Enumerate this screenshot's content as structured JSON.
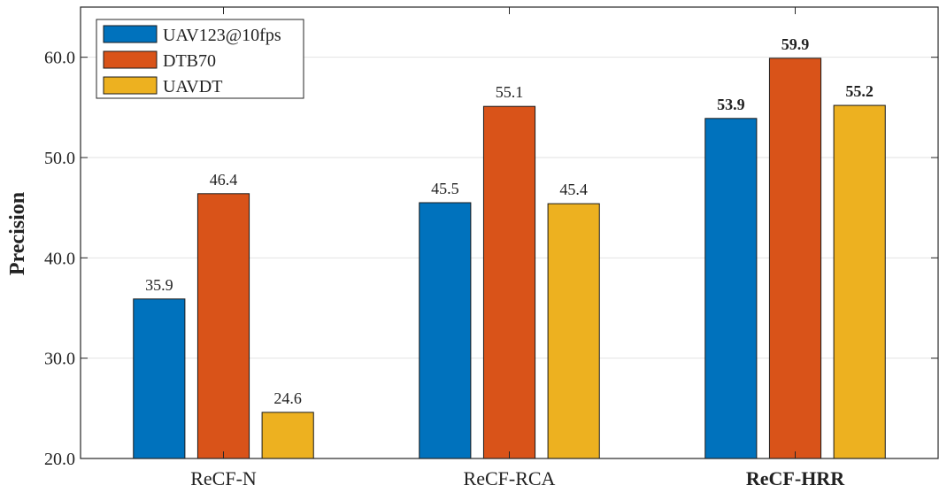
{
  "chart_data": {
    "type": "bar",
    "categories": [
      "ReCF-N",
      "ReCF-RCA",
      "ReCF-HRR"
    ],
    "bold_category": "ReCF-HRR",
    "series": [
      {
        "name": "UAV123@10fps",
        "color": "#0072BD",
        "values": [
          35.9,
          45.5,
          53.9
        ]
      },
      {
        "name": "DTB70",
        "color": "#D95319",
        "values": [
          46.4,
          55.1,
          59.9
        ]
      },
      {
        "name": "UAVDT",
        "color": "#EDB120",
        "values": [
          24.6,
          45.4,
          55.2
        ]
      }
    ],
    "title": "",
    "xlabel": "",
    "ylabel": "Precision",
    "ylim": [
      20,
      65
    ],
    "yticks": [
      20.0,
      30.0,
      40.0,
      50.0,
      60.0
    ],
    "grid": true,
    "legend_position": "top-left"
  }
}
